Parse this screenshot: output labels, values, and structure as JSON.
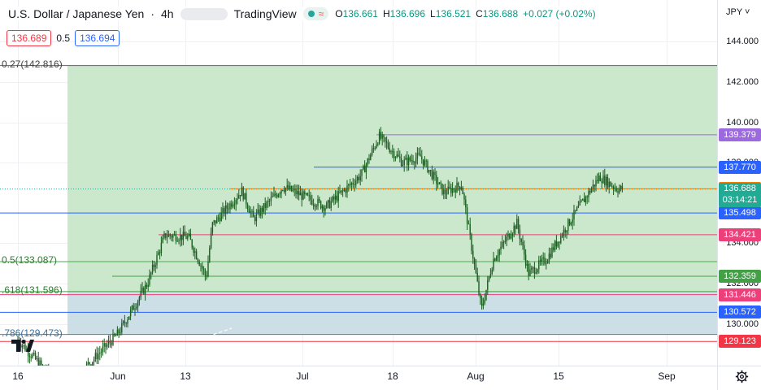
{
  "header": {
    "symbol": "U.S. Dollar / Japanese Yen",
    "interval": "4h",
    "source": "TradingView",
    "ohlc": {
      "o_label": "O",
      "o": "136.661",
      "h_label": "H",
      "h": "136.696",
      "l_label": "L",
      "l": "136.521",
      "c_label": "C",
      "c": "136.688",
      "change": "+0.027 (+0.02%)"
    }
  },
  "price_boxes": {
    "sell": "136.689",
    "spread": "0.5",
    "buy": "136.694"
  },
  "currency": "JPY",
  "colors": {
    "fib_upper_zone": "#c8e6c9",
    "fib_lower_zone": "#c9dde6",
    "candle_color": "#1b5e20",
    "up_color": "#089981",
    "down_color": "#f23645"
  },
  "icons": {
    "settings": "gear-icon",
    "logo": "tradingview-logo-icon",
    "status": "market-open-dot-icon",
    "wave": "wave-icon"
  },
  "chart_data": {
    "type": "candlestick",
    "symbol": "USDJPY",
    "interval": "4h",
    "ylim": [
      128.5,
      146.0
    ],
    "y_ticks": [
      "144.000",
      "142.000",
      "140.000",
      "138.000",
      "134.000",
      "132.000",
      "130.000"
    ],
    "x_ticks": [
      "16",
      "Jun",
      "13",
      "Jul",
      "18",
      "Aug",
      "15",
      "Sep"
    ],
    "fib_levels": [
      {
        "label": "0.27(142.816)",
        "ratio": "0.27",
        "value": 142.816
      },
      {
        "label": "0.5(133.087)",
        "ratio": "0.5",
        "value": 133.087
      },
      {
        "label": ".618(131.596)",
        "ratio": ".618",
        "value": 131.596
      },
      {
        "label": ".786(129.473)",
        "ratio": ".786",
        "value": 129.473
      }
    ],
    "horizontal_levels": [
      {
        "value": 139.379,
        "label": "139.379",
        "color": "#9c6ade"
      },
      {
        "value": 137.77,
        "label": "137.770",
        "color": "#2962ff"
      },
      {
        "value": 136.697,
        "label": "136.697",
        "color": "#f57c00"
      },
      {
        "value": 135.498,
        "label": "135.498",
        "color": "#2962ff"
      },
      {
        "value": 134.421,
        "label": "134.421",
        "color": "#ec407a"
      },
      {
        "value": 132.359,
        "label": "132.359",
        "color": "#43a047"
      },
      {
        "value": 131.446,
        "label": "131.446",
        "color": "#ec407a"
      },
      {
        "value": 130.572,
        "label": "130.572",
        "color": "#2962ff"
      },
      {
        "value": 129.123,
        "label": "129.123",
        "color": "#f23645"
      }
    ],
    "last_price": {
      "value": 136.688,
      "label": "136.688",
      "countdown": "03:14:21"
    },
    "series_approx": [
      {
        "t": "May 16",
        "close": 129.2
      },
      {
        "t": "May 20",
        "close": 127.9
      },
      {
        "t": "May 24",
        "close": 126.8
      },
      {
        "t": "Jun 1",
        "close": 129.5
      },
      {
        "t": "Jun 6",
        "close": 132.0
      },
      {
        "t": "Jun 9",
        "close": 134.4
      },
      {
        "t": "Jun 13",
        "close": 134.3
      },
      {
        "t": "Jun 16",
        "close": 132.3
      },
      {
        "t": "Jun 17",
        "close": 134.9
      },
      {
        "t": "Jun 22",
        "close": 136.6
      },
      {
        "t": "Jun 24",
        "close": 135.2
      },
      {
        "t": "Jun 29",
        "close": 136.8
      },
      {
        "t": "Jul 5",
        "close": 135.8
      },
      {
        "t": "Jul 11",
        "close": 137.4
      },
      {
        "t": "Jul 14",
        "close": 139.3
      },
      {
        "t": "Jul 18",
        "close": 138.0
      },
      {
        "t": "Jul 21",
        "close": 138.3
      },
      {
        "t": "Jul 25",
        "close": 136.5
      },
      {
        "t": "Jul 28",
        "close": 136.9
      },
      {
        "t": "Aug 2",
        "close": 130.7
      },
      {
        "t": "Aug 4",
        "close": 133.2
      },
      {
        "t": "Aug 8",
        "close": 135.0
      },
      {
        "t": "Aug 10",
        "close": 132.5
      },
      {
        "t": "Aug 13",
        "close": 133.2
      },
      {
        "t": "Aug 17",
        "close": 135.1
      },
      {
        "t": "Aug 22",
        "close": 137.3
      },
      {
        "t": "Aug 25",
        "close": 136.7
      },
      {
        "t": "Aug 26",
        "close": 136.688
      }
    ]
  }
}
